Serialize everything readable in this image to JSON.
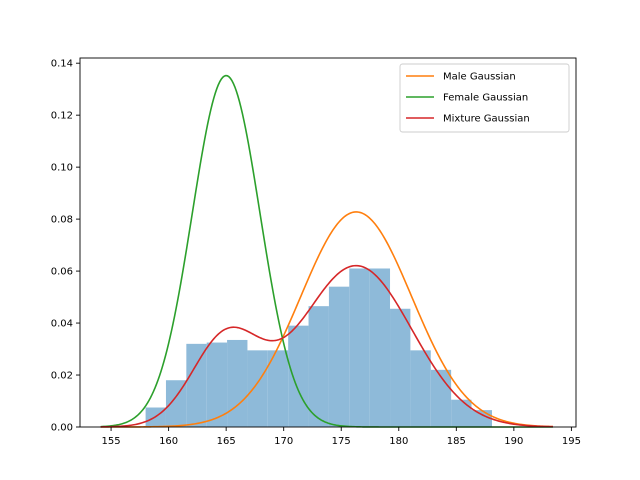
{
  "chart_data": {
    "type": "histogram-with-curves",
    "title": "",
    "xlabel": "",
    "ylabel": "",
    "xlim": [
      152.3,
      195.4
    ],
    "ylim": [
      0,
      0.142
    ],
    "x_ticks": [
      155,
      160,
      165,
      170,
      175,
      180,
      185,
      190,
      195
    ],
    "y_ticks": [
      0.0,
      0.02,
      0.04,
      0.06,
      0.08,
      0.1,
      0.12,
      0.14
    ],
    "y_tick_labels": [
      "0.00",
      "0.02",
      "0.04",
      "0.06",
      "0.08",
      "0.10",
      "0.12",
      "0.14"
    ],
    "grid": false,
    "legend_position": "top-right",
    "histogram": {
      "color": "#8ebad9",
      "bin_edges": [
        158.0,
        159.77,
        161.54,
        163.31,
        165.08,
        166.85,
        168.62,
        170.39,
        172.16,
        173.93,
        175.7,
        177.47,
        179.24,
        181.01,
        182.78,
        184.55,
        186.32,
        188.1
      ],
      "densities": [
        0.0075,
        0.018,
        0.032,
        0.0325,
        0.0335,
        0.0295,
        0.0295,
        0.039,
        0.0465,
        0.054,
        0.061,
        0.061,
        0.0455,
        0.0295,
        0.022,
        0.0105,
        0.0065
      ]
    },
    "series": [
      {
        "name": "Male Gaussian",
        "color": "#ff7f0e",
        "mean": 176.3,
        "std": 4.82,
        "weight": 1.0
      },
      {
        "name": "Female Gaussian",
        "color": "#2ca02c",
        "mean": 165.0,
        "std": 2.95,
        "weight": 1.0
      },
      {
        "name": "Mixture Gaussian",
        "color": "#d62728",
        "components": [
          {
            "mean": 176.3,
            "std": 4.82,
            "weight": 0.75
          },
          {
            "mean": 165.0,
            "std": 2.95,
            "weight": 0.25
          }
        ]
      }
    ],
    "curve_x_range": [
      154.1,
      193.4
    ]
  }
}
